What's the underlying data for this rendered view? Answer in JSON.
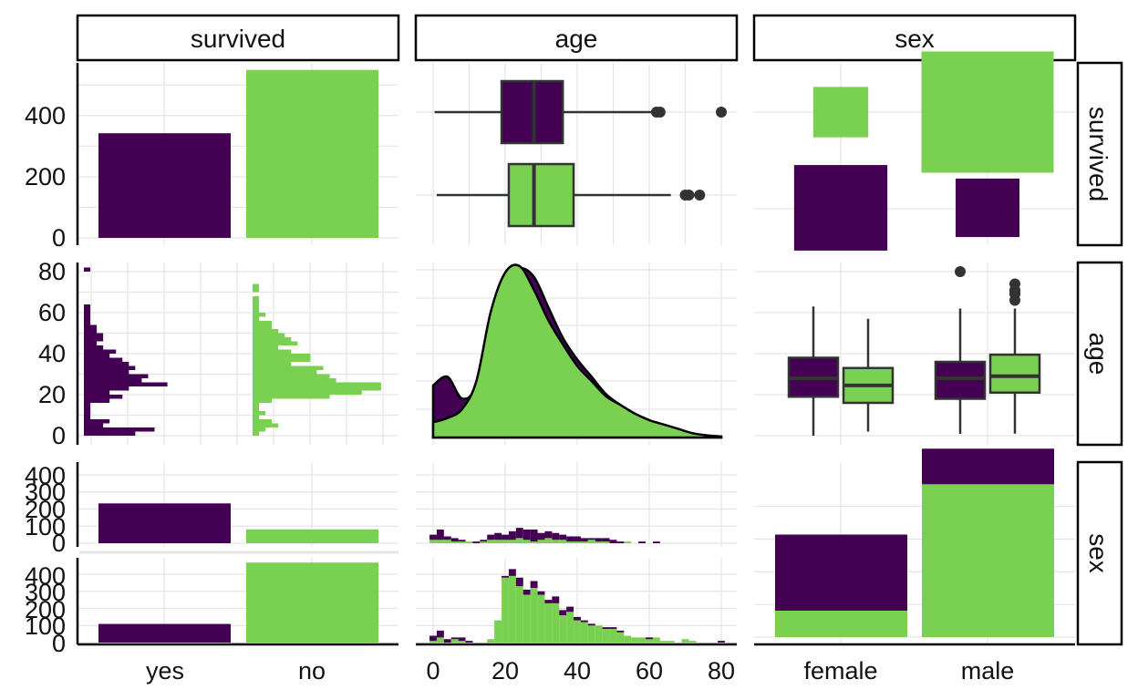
{
  "colors": {
    "yes": "#440154",
    "no": "#7AD151",
    "outline": "#333333",
    "grid": "#e5e5e5"
  },
  "strips": {
    "col": [
      "survived",
      "age",
      "sex"
    ],
    "row": [
      "survived",
      "age",
      "sex"
    ]
  },
  "ticks": {
    "count_top": [
      "0",
      "200",
      "400"
    ],
    "age_y": [
      "0",
      "20",
      "40",
      "60",
      "80"
    ],
    "count_small": [
      "0",
      "100",
      "200",
      "300",
      "400"
    ],
    "x_survived": [
      "yes",
      "no"
    ],
    "x_age": [
      "0",
      "20",
      "40",
      "60",
      "80"
    ],
    "x_sex": [
      "female",
      "male"
    ]
  },
  "chart_data": {
    "type": "pairs-matrix",
    "variables": [
      "survived",
      "age",
      "sex"
    ],
    "color_by": "survived",
    "survived_counts": {
      "categories": [
        "yes",
        "no"
      ],
      "values": [
        342,
        549
      ],
      "ylim": [
        0,
        560
      ]
    },
    "age_by_survived_box": [
      {
        "group": "yes",
        "q1": 19,
        "median": 28,
        "q3": 36,
        "whisker_low": 0.4,
        "whisker_high": 62,
        "outliers": [
          62,
          63,
          80
        ]
      },
      {
        "group": "no",
        "q1": 21,
        "median": 28,
        "q3": 39,
        "whisker_low": 1,
        "whisker_high": 66,
        "outliers": [
          70,
          71,
          74
        ]
      }
    ],
    "survived_by_sex_tiles": [
      {
        "survived": "yes",
        "sex": "female",
        "count": 233
      },
      {
        "survived": "yes",
        "sex": "male",
        "count": 109
      },
      {
        "survived": "no",
        "sex": "female",
        "count": 81
      },
      {
        "survived": "no",
        "sex": "male",
        "count": 468
      }
    ],
    "age_hist_by_survived": {
      "bin_width": 2,
      "bins": [
        0,
        2,
        4,
        6,
        8,
        10,
        12,
        14,
        16,
        18,
        20,
        22,
        24,
        26,
        28,
        30,
        32,
        34,
        36,
        38,
        40,
        42,
        44,
        46,
        48,
        50,
        52,
        54,
        56,
        58,
        60,
        62,
        64,
        66,
        68,
        70,
        72,
        74,
        76,
        78,
        80
      ],
      "yes": [
        8,
        11,
        3,
        4,
        1,
        1,
        1,
        1,
        4,
        6,
        4,
        7,
        13,
        9,
        10,
        7,
        8,
        7,
        6,
        4,
        5,
        3,
        2,
        3,
        3,
        2,
        2,
        1,
        1,
        1,
        1,
        1,
        0,
        0,
        0,
        0,
        0,
        0,
        0,
        0,
        1
      ],
      "no": [
        1,
        2,
        4,
        3,
        1,
        2,
        1,
        1,
        3,
        12,
        17,
        20,
        20,
        13,
        12,
        10,
        11,
        6,
        9,
        9,
        6,
        4,
        7,
        6,
        5,
        4,
        3,
        3,
        1,
        2,
        1,
        1,
        1,
        1,
        0,
        1,
        1,
        0,
        0,
        0,
        0
      ],
      "ylim": [
        0,
        80
      ]
    },
    "age_density_by_survived": {
      "x": [
        0,
        4,
        8,
        12,
        16,
        20,
        24,
        28,
        32,
        36,
        40,
        44,
        48,
        52,
        56,
        60,
        64,
        68,
        72,
        76,
        80
      ],
      "yes": [
        0.024,
        0.028,
        0.018,
        0.024,
        0.052,
        0.072,
        0.078,
        0.074,
        0.06,
        0.046,
        0.036,
        0.028,
        0.02,
        0.015,
        0.011,
        0.008,
        0.005,
        0.002,
        0.001,
        0.0005,
        0.0003
      ],
      "no": [
        0.007,
        0.009,
        0.013,
        0.026,
        0.058,
        0.076,
        0.079,
        0.068,
        0.054,
        0.043,
        0.033,
        0.026,
        0.019,
        0.015,
        0.011,
        0.008,
        0.006,
        0.004,
        0.002,
        0.001,
        0.0005
      ]
    },
    "age_by_sex_box": [
      {
        "sex": "female",
        "group": "yes",
        "q1": 19,
        "median": 28,
        "q3": 38,
        "whisker_low": 0,
        "whisker_high": 63,
        "outliers": []
      },
      {
        "sex": "female",
        "group": "no",
        "q1": 16,
        "median": 24.5,
        "q3": 33,
        "whisker_low": 2,
        "whisker_high": 57,
        "outliers": []
      },
      {
        "sex": "male",
        "group": "yes",
        "q1": 18,
        "median": 28,
        "q3": 36,
        "whisker_low": 0.9,
        "whisker_high": 62,
        "outliers": [
          80
        ]
      },
      {
        "sex": "male",
        "group": "no",
        "q1": 21,
        "median": 29,
        "q3": 39.5,
        "whisker_low": 1,
        "whisker_high": 62,
        "outliers": [
          66,
          69,
          70,
          71,
          74
        ]
      }
    ],
    "sex_by_survived_counts": {
      "female": {
        "yes": 233,
        "no": 81
      },
      "male": {
        "yes": 109,
        "no": 468
      },
      "ylim": [
        0,
        480
      ]
    },
    "age_hist_by_sex": {
      "female": {
        "yes": [
          30,
          60,
          20,
          20,
          10,
          0,
          10,
          10,
          30,
          40,
          30,
          50,
          60,
          60,
          70,
          40,
          40,
          40,
          30,
          30,
          30,
          20,
          10,
          20,
          20,
          20,
          10,
          0,
          0,
          10,
          0,
          10,
          0,
          0,
          0,
          0,
          0,
          0,
          0,
          0,
          0
        ],
        "no": [
          20,
          20,
          20,
          10,
          10,
          10,
          0,
          10,
          20,
          20,
          20,
          20,
          30,
          20,
          10,
          20,
          30,
          20,
          20,
          10,
          10,
          10,
          20,
          10,
          10,
          0,
          0,
          10,
          0,
          0,
          0,
          0,
          0,
          0,
          0,
          0,
          0,
          0,
          0,
          0,
          0
        ]
      },
      "male": {
        "yes": [
          30,
          40,
          20,
          10,
          20,
          10,
          0,
          0,
          0,
          0,
          10,
          40,
          50,
          30,
          40,
          20,
          20,
          40,
          30,
          30,
          20,
          10,
          10,
          0,
          10,
          10,
          10,
          0,
          0,
          0,
          10,
          0,
          0,
          0,
          0,
          0,
          0,
          0,
          0,
          0,
          10
        ],
        "no": [
          10,
          30,
          0,
          20,
          10,
          0,
          0,
          0,
          20,
          130,
          380,
          390,
          330,
          280,
          320,
          280,
          230,
          230,
          160,
          180,
          130,
          120,
          100,
          100,
          80,
          80,
          60,
          40,
          30,
          30,
          20,
          30,
          10,
          10,
          0,
          20,
          10,
          0,
          0,
          0,
          0
        ]
      },
      "ylim": [
        0,
        480
      ]
    }
  }
}
